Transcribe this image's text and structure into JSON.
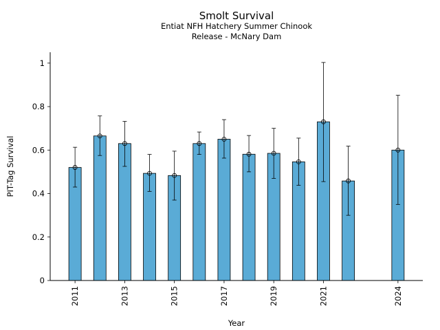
{
  "chart_data": {
    "type": "bar",
    "title": "Smolt Survival",
    "subtitle_line1": "Entiat NFH Hatchery Summer Chinook",
    "subtitle_line2": "Release - McNary Dam",
    "xlabel": "Year",
    "ylabel": "PIT-Tag Survival",
    "xlim": [
      2010.0,
      2025.0
    ],
    "ylim": [
      0,
      1.05
    ],
    "yticks": [
      0,
      0.2,
      0.4,
      0.6,
      0.8,
      1
    ],
    "ytick_labels": [
      "0",
      "0.2",
      "0.4",
      "0.6",
      "0.8",
      "1"
    ],
    "xticks": [
      2011,
      2013,
      2015,
      2017,
      2019,
      2021,
      2024
    ],
    "xtick_labels": [
      "2011",
      "2013",
      "2015",
      "2017",
      "2019",
      "2021",
      "2024"
    ],
    "grid": false,
    "bar_color": "#5aabd6",
    "x": [
      2011,
      2012,
      2013,
      2014,
      2015,
      2016,
      2017,
      2018,
      2019,
      2020,
      2021,
      2022,
      2024
    ],
    "values": [
      0.52,
      0.665,
      0.63,
      0.493,
      0.483,
      0.63,
      0.65,
      0.581,
      0.585,
      0.546,
      0.73,
      0.458,
      0.6
    ],
    "error_low": [
      0.43,
      0.575,
      0.525,
      0.41,
      0.37,
      0.58,
      0.563,
      0.5,
      0.47,
      0.438,
      0.455,
      0.3,
      0.35
    ],
    "error_high": [
      0.613,
      0.757,
      0.732,
      0.58,
      0.595,
      0.683,
      0.74,
      0.667,
      0.7,
      0.655,
      1.003,
      0.618,
      0.852
    ]
  }
}
